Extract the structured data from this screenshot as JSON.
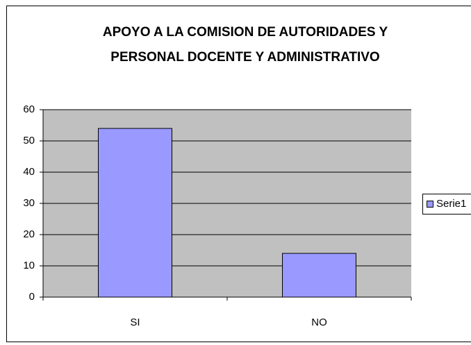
{
  "chart_data": {
    "type": "bar",
    "title": [
      "APOYO A LA COMISION DE AUTORIDADES Y",
      "PERSONAL DOCENTE Y ADMINISTRATIVO"
    ],
    "categories": [
      "SI",
      "NO"
    ],
    "series": [
      {
        "name": "Serie1",
        "color": "#9999ff",
        "values": [
          54,
          14
        ]
      }
    ],
    "ylim": [
      0,
      60
    ],
    "yticks": [
      0,
      10,
      20,
      30,
      40,
      50,
      60
    ],
    "grid": true,
    "legend": "right"
  }
}
